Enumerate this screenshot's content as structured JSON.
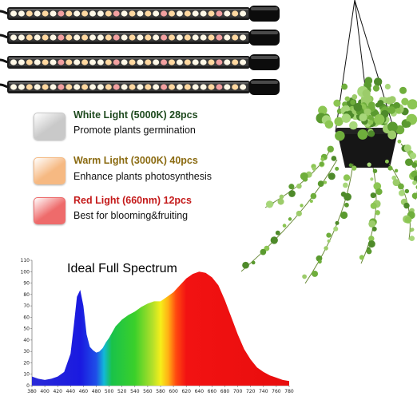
{
  "legend": [
    {
      "title": "White Light (5000K) 28pcs",
      "description": "Promote plants germination",
      "title_color": "#1f4a1f",
      "swatch_color": "#c9c9c9",
      "icon": "white-led-icon"
    },
    {
      "title": "Warm Light (3000K) 40pcs",
      "description": "Enhance plants photosynthesis",
      "title_color": "#8a6a10",
      "swatch_color": "#f6b982",
      "icon": "warm-led-icon"
    },
    {
      "title": "Red Light (660nm) 12pcs",
      "description": "Best for blooming&fruiting",
      "title_color": "#c41a1a",
      "swatch_color": "#ee6b6b",
      "icon": "red-led-icon"
    }
  ],
  "chart_data": {
    "type": "area",
    "title": "Ideal Full Spectrum",
    "xlabel": "",
    "ylabel": "",
    "xlim": [
      380,
      780
    ],
    "ylim": [
      0,
      110
    ],
    "x_ticks": [
      380,
      400,
      420,
      440,
      460,
      480,
      500,
      520,
      540,
      560,
      580,
      600,
      620,
      640,
      660,
      680,
      700,
      720,
      740,
      760,
      780
    ],
    "y_ticks": [
      0,
      10,
      20,
      30,
      40,
      50,
      60,
      70,
      80,
      90,
      100,
      110
    ],
    "grid": false,
    "series": [
      {
        "x": [
          380,
          390,
          400,
          410,
          420,
          430,
          440,
          445,
          450,
          455,
          460,
          465,
          470,
          475,
          480,
          485,
          490,
          495,
          500,
          510,
          520,
          530,
          540,
          550,
          560,
          570,
          580,
          590,
          600,
          610,
          620,
          630,
          640,
          650,
          660,
          670,
          680,
          690,
          700,
          710,
          720,
          730,
          740,
          750,
          760,
          770,
          780
        ],
        "y": [
          8,
          6,
          5,
          6,
          8,
          12,
          28,
          52,
          78,
          84,
          70,
          45,
          34,
          31,
          29,
          30,
          33,
          38,
          42,
          52,
          58,
          62,
          65,
          69,
          72,
          74,
          74,
          78,
          82,
          88,
          94,
          98,
          100,
          99,
          95,
          88,
          75,
          60,
          45,
          32,
          23,
          16,
          12,
          9,
          7,
          5,
          4
        ]
      }
    ]
  }
}
